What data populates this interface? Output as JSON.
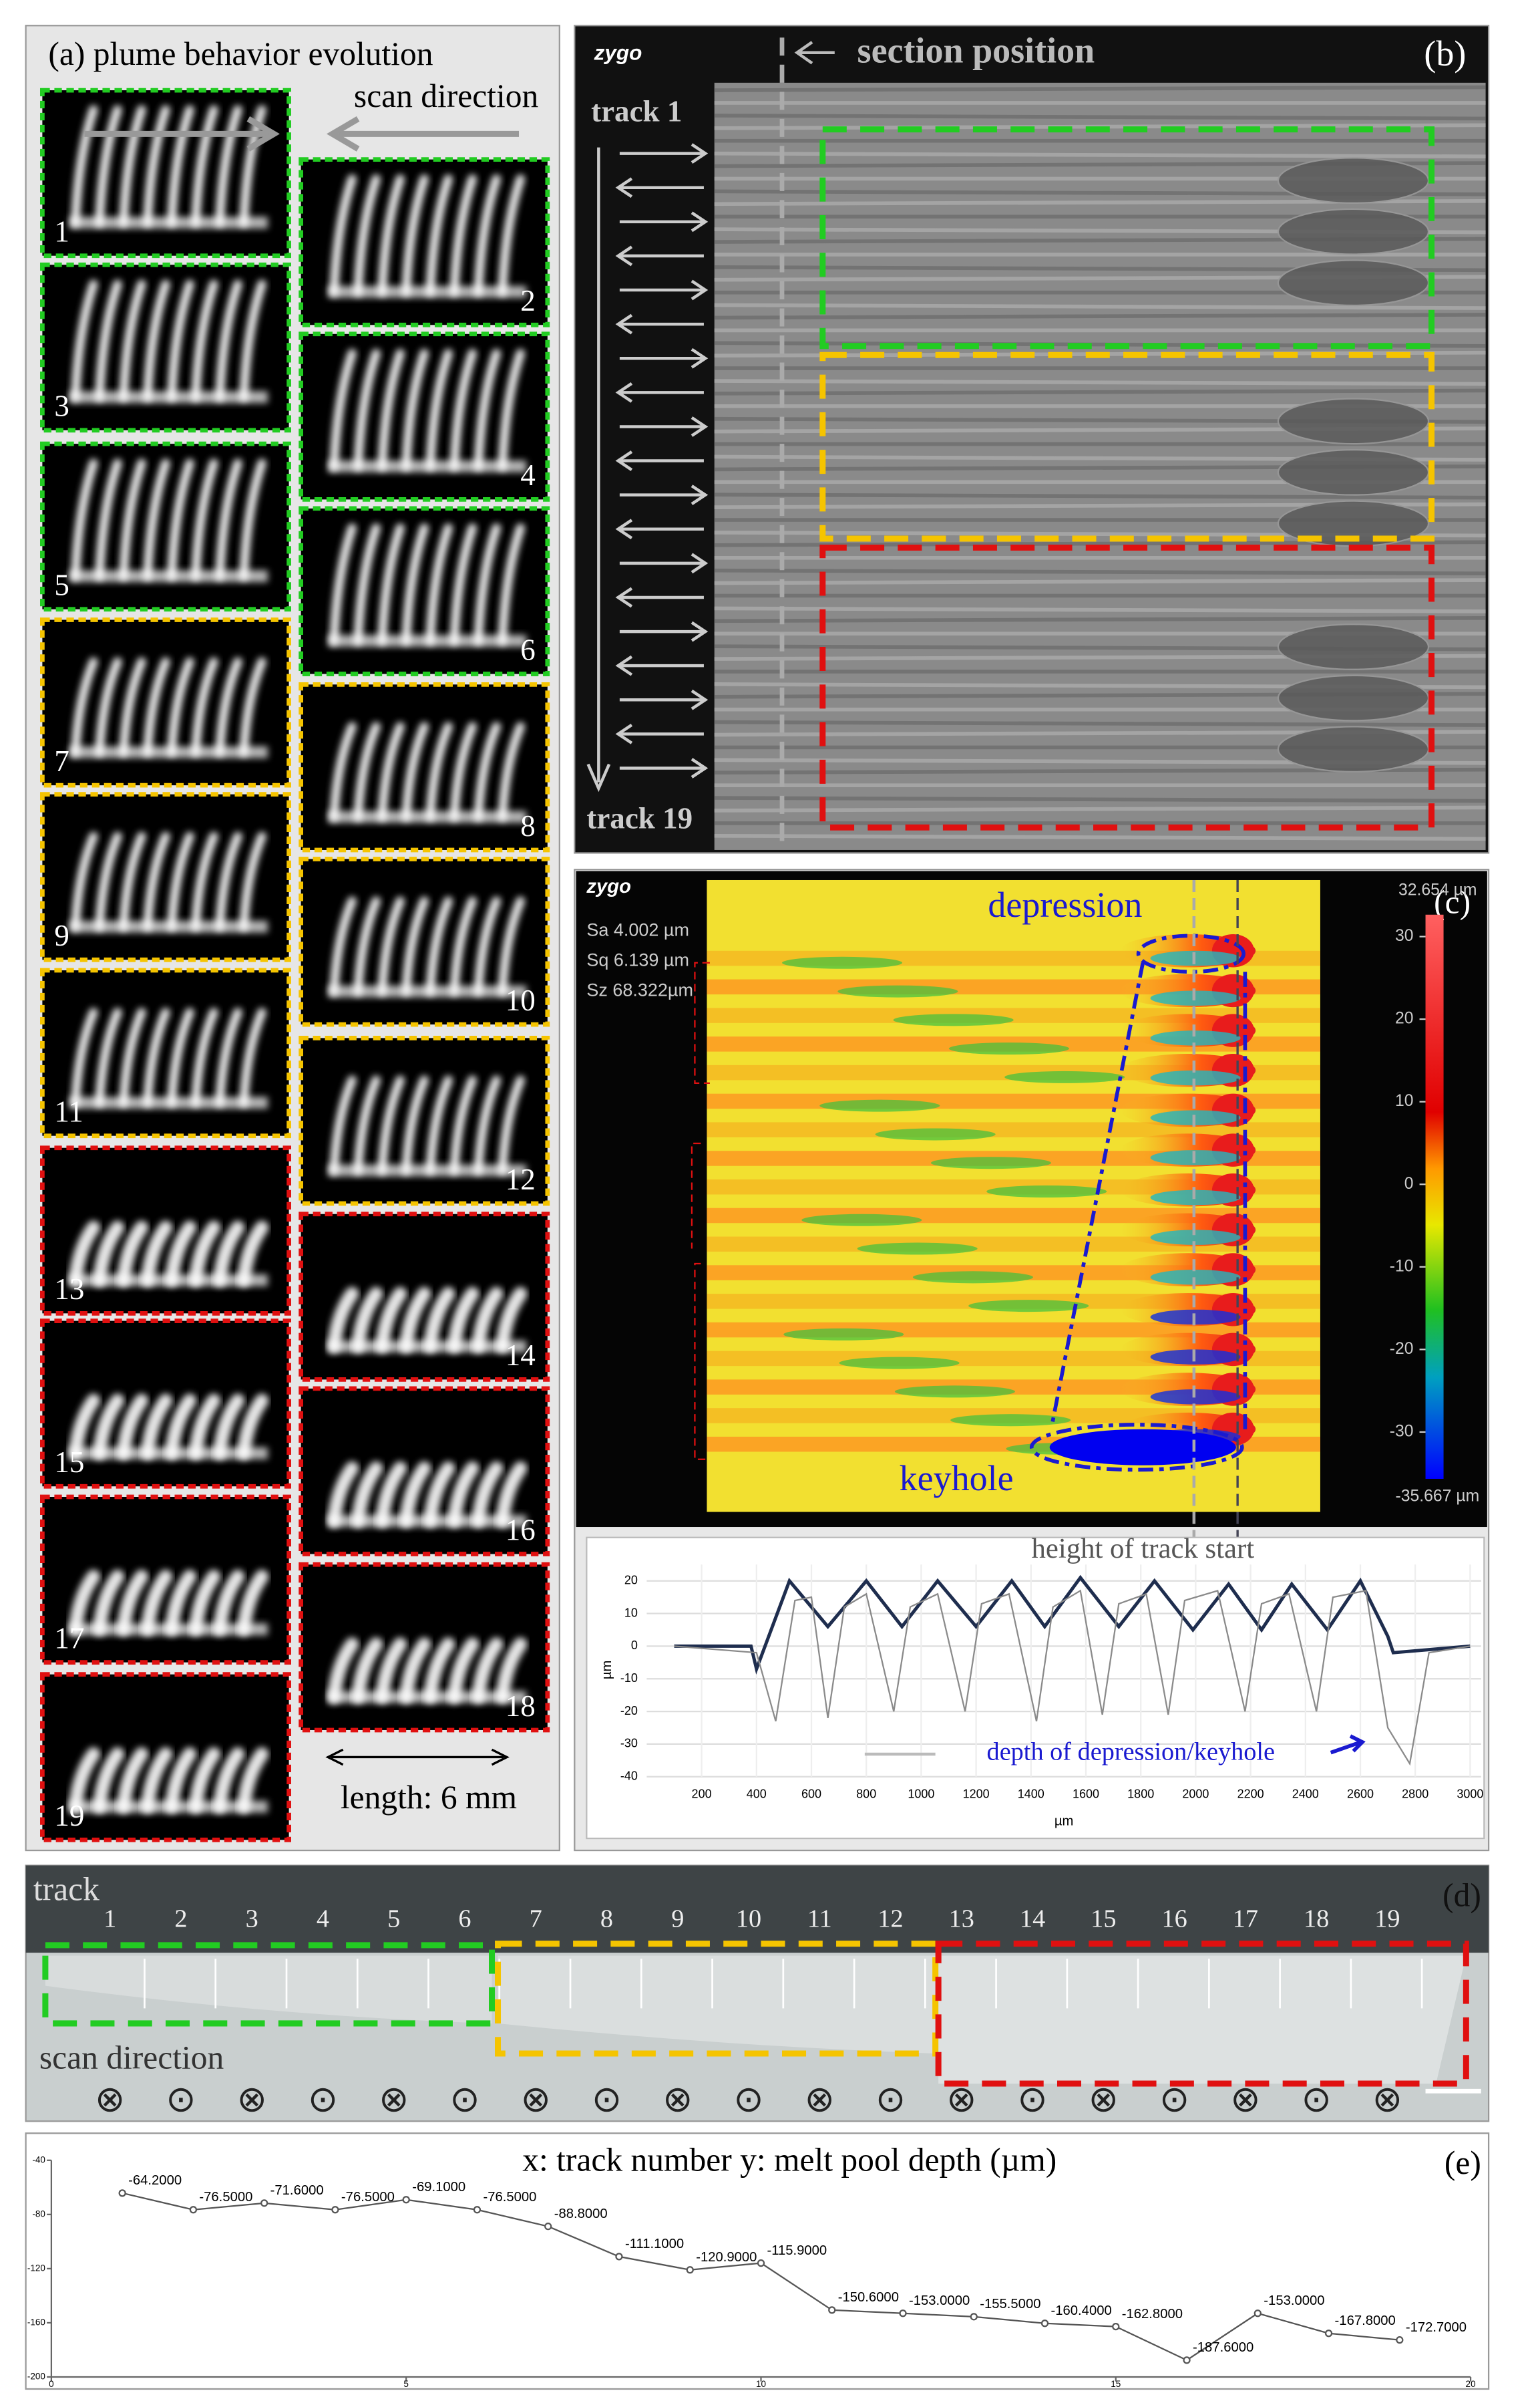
{
  "panel_a": {
    "title": "(a) plume behavior evolution",
    "scan_label": "scan direction",
    "frames": [
      "1",
      "2",
      "3",
      "4",
      "5",
      "6",
      "7",
      "8",
      "9",
      "10",
      "11",
      "12",
      "13",
      "14",
      "15",
      "16",
      "17",
      "18",
      "19"
    ],
    "scale_label": "length: 6 mm"
  },
  "panel_b": {
    "label": "(b)",
    "logo": "zygo",
    "section_label": "section position",
    "track_start": "track 1",
    "track_end": "track 19"
  },
  "panel_c": {
    "label": "(c)",
    "logo": "zygo",
    "stats": [
      "Sa 4.002  µm",
      "Sq 6.139  µm",
      "Sz 68.322µm"
    ],
    "depression": "depression",
    "keyhole": "keyhole",
    "colorbar": {
      "max_label": "32.654 µm",
      "min_label": "-35.667 µm",
      "lim": [
        -35.667,
        32.654
      ],
      "ticks": [
        30,
        20,
        10,
        0,
        -10,
        -20,
        -30
      ]
    },
    "profile": {
      "type": "line",
      "xlabel": "µm",
      "ylabel": "µm",
      "annotations": [
        "height of track start",
        "depth of depression/keyhole"
      ],
      "xlim": [
        0,
        3040
      ],
      "ylim": [
        -40,
        25
      ],
      "xticks": [
        200,
        400,
        600,
        800,
        1000,
        1200,
        1400,
        1600,
        1800,
        2000,
        2200,
        2400,
        2600,
        2800,
        3000
      ],
      "yticks": [
        20,
        10,
        0,
        -10,
        -20,
        -30,
        -40
      ],
      "series": [
        {
          "color": "#1e2d4e",
          "x": [
            100,
            380,
            400,
            520,
            660,
            800,
            930,
            1060,
            1200,
            1330,
            1450,
            1580,
            1720,
            1850,
            1990,
            2120,
            2240,
            2350,
            2480,
            2600,
            2700,
            2720,
            3000
          ],
          "values": [
            0,
            0,
            -7,
            20,
            6,
            20,
            6,
            20,
            6,
            20,
            6,
            21,
            6,
            20,
            5,
            19,
            5,
            19,
            5,
            20,
            3,
            -2,
            0
          ]
        },
        {
          "color": "#8a8a8a",
          "x": [
            100,
            400,
            470,
            540,
            600,
            660,
            720,
            800,
            900,
            960,
            1060,
            1160,
            1220,
            1320,
            1420,
            1480,
            1580,
            1660,
            1720,
            1820,
            1900,
            1960,
            2080,
            2180,
            2240,
            2340,
            2440,
            2500,
            2620,
            2700,
            2780,
            2850,
            3000
          ],
          "values": [
            0,
            -2,
            -23,
            14,
            15,
            -22,
            12,
            16,
            -20,
            12,
            16,
            -20,
            13,
            16,
            -23,
            12,
            17,
            -21,
            13,
            16,
            -21,
            14,
            17,
            -20,
            13,
            16,
            -20,
            15,
            17,
            -25,
            -36,
            -2,
            0
          ]
        }
      ]
    }
  },
  "panel_d": {
    "label": "(d)",
    "track_label": "track",
    "scan_label": "scan direction",
    "tracks": [
      "1",
      "2",
      "3",
      "4",
      "5",
      "6",
      "7",
      "8",
      "9",
      "10",
      "11",
      "12",
      "13",
      "14",
      "15",
      "16",
      "17",
      "18",
      "19"
    ],
    "symbols": [
      "⊗",
      "⊙",
      "⊗",
      "⊙",
      "⊗",
      "⊙",
      "⊗",
      "⊙",
      "⊗",
      "⊙",
      "⊗",
      "⊙",
      "⊗",
      "⊙",
      "⊗",
      "⊙",
      "⊗",
      "⊙",
      "⊗"
    ]
  },
  "chart_data": {
    "type": "line",
    "title": "x: track number   y: melt pool depth (µm)",
    "label": "(e)",
    "x": [
      1,
      2,
      3,
      4,
      5,
      6,
      7,
      8,
      9,
      10,
      11,
      12,
      13,
      14,
      15,
      16,
      17,
      18,
      19
    ],
    "values": [
      -64.2,
      -76.5,
      -71.6,
      -76.5,
      -69.1,
      -76.5,
      -88.8,
      -111.1,
      -120.9,
      -115.9,
      -150.6,
      -153,
      -155.5,
      -160.4,
      -162.8,
      -187.6,
      -153,
      -167.8,
      -172.7
    ],
    "value_labels": [
      "-64.2000",
      "-76.5000",
      "-71.6000",
      "-76.5000",
      "-69.1000",
      "-76.5000",
      "-88.8000",
      "-111.1000",
      "-120.9000",
      "-115.9000",
      "-150.6000",
      "-153.0000",
      "-155.5000",
      "-160.4000",
      "-162.8000",
      "-187.6000",
      "-153.0000",
      "-167.8000",
      "-172.7000"
    ],
    "color": "#555555",
    "xlim": [
      0,
      20
    ],
    "ylim": [
      -200,
      -40
    ],
    "xticks": [
      0,
      5,
      10,
      15,
      20
    ],
    "yticks": [
      -40,
      -80,
      -120,
      -160,
      -200
    ]
  }
}
